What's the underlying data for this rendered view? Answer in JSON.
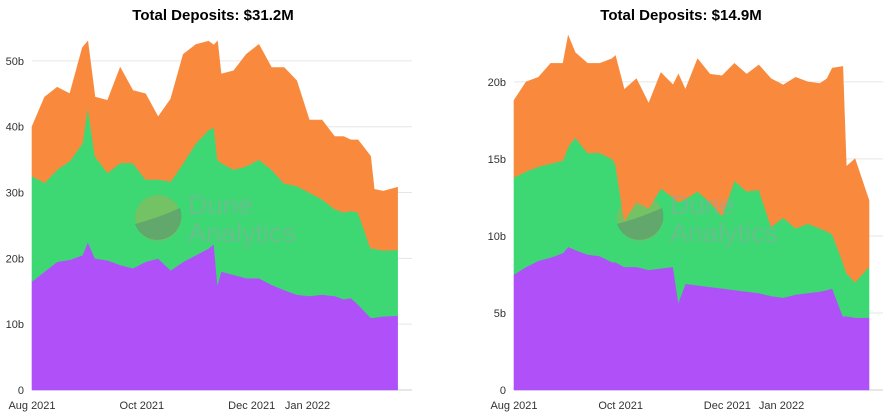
{
  "chart_data": [
    {
      "type": "area",
      "stacked": true,
      "title": "Total Deposits: $31.2M",
      "xlabel": "",
      "ylabel": "",
      "ylim": [
        0,
        55
      ],
      "y_ticks": [
        0,
        10,
        20,
        30,
        40,
        50
      ],
      "y_tick_labels": [
        "0",
        "10b",
        "20b",
        "30b",
        "40b",
        "50b"
      ],
      "x_range": [
        "2021-08-01",
        "2022-02-28"
      ],
      "x_ticks": [
        {
          "date": "2021-08-01",
          "label": "Aug 2021"
        },
        {
          "date": "2021-10-01",
          "label": "Oct 2021"
        },
        {
          "date": "2021-12-01",
          "label": "Dec 2021"
        },
        {
          "date": "2022-01-01",
          "label": "Jan 2022"
        }
      ],
      "watermark": [
        "Dune",
        "Analytics"
      ],
      "x": [
        "2021-08-01",
        "2021-08-08",
        "2021-08-15",
        "2021-08-22",
        "2021-08-29",
        "2021-09-01",
        "2021-09-05",
        "2021-09-12",
        "2021-09-19",
        "2021-09-26",
        "2021-10-03",
        "2021-10-10",
        "2021-10-17",
        "2021-10-24",
        "2021-10-31",
        "2021-11-07",
        "2021-11-10",
        "2021-11-12",
        "2021-11-14",
        "2021-11-21",
        "2021-11-28",
        "2021-12-05",
        "2021-12-12",
        "2021-12-19",
        "2021-12-26",
        "2022-01-02",
        "2022-01-09",
        "2022-01-16",
        "2022-01-21",
        "2022-01-25",
        "2022-01-29",
        "2022-02-05",
        "2022-02-07",
        "2022-02-12",
        "2022-02-20"
      ],
      "series": [
        {
          "name": "Series 1",
          "color": "#b050f8",
          "values": [
            16.5,
            18,
            19.5,
            19.8,
            20.5,
            22.5,
            20,
            19.7,
            19,
            18.5,
            19.5,
            20,
            18.2,
            19.5,
            20.5,
            21.5,
            22.2,
            16,
            18,
            17.5,
            17,
            17,
            16,
            15.2,
            14.5,
            14.3,
            14.5,
            14.3,
            13.8,
            14,
            13,
            11,
            11,
            11.2,
            11.3
          ]
        },
        {
          "name": "Series 2",
          "color": "#3dd874",
          "values": [
            16,
            13.5,
            14,
            15,
            17,
            20.5,
            15.5,
            13.3,
            15.5,
            16,
            12.5,
            12,
            13.5,
            15,
            17,
            18,
            17.7,
            19,
            16.5,
            16,
            17,
            18,
            17.5,
            16.2,
            16.5,
            15.7,
            14.5,
            13.2,
            13.2,
            13.2,
            14,
            10.5,
            10.5,
            10,
            10
          ]
        },
        {
          "name": "Series 3",
          "color": "#f98a3d",
          "values": [
            7.5,
            13,
            12.5,
            10.2,
            14.5,
            10,
            9,
            11,
            14.5,
            11,
            13,
            9.5,
            12.5,
            16.5,
            15,
            13.5,
            12.5,
            18,
            13.5,
            15,
            17,
            17.5,
            15.5,
            17.6,
            16,
            11,
            12,
            11,
            11.5,
            10.8,
            11,
            14,
            9,
            9,
            9.5
          ]
        }
      ]
    },
    {
      "type": "area",
      "stacked": true,
      "title": "Total Deposits: $14.9M",
      "xlabel": "",
      "ylabel": "",
      "ylim": [
        0,
        23.5
      ],
      "y_ticks": [
        0,
        5,
        10,
        15,
        20
      ],
      "y_tick_labels": [
        "0",
        "5b",
        "10b",
        "15b",
        "20b"
      ],
      "x_range": [
        "2021-08-01",
        "2022-02-28"
      ],
      "x_ticks": [
        {
          "date": "2021-08-01",
          "label": "Aug 2021"
        },
        {
          "date": "2021-10-01",
          "label": "Oct 2021"
        },
        {
          "date": "2021-12-01",
          "label": "Dec 2021"
        },
        {
          "date": "2022-01-01",
          "label": "Jan 2022"
        }
      ],
      "watermark": [
        "Dune",
        "Analytics"
      ],
      "x": [
        "2021-08-01",
        "2021-08-08",
        "2021-08-15",
        "2021-08-22",
        "2021-08-29",
        "2021-09-01",
        "2021-09-05",
        "2021-09-12",
        "2021-09-19",
        "2021-09-26",
        "2021-09-28",
        "2021-10-03",
        "2021-10-10",
        "2021-10-17",
        "2021-10-24",
        "2021-10-31",
        "2021-11-03",
        "2021-11-07",
        "2021-11-14",
        "2021-11-21",
        "2021-11-28",
        "2021-12-05",
        "2021-12-12",
        "2021-12-19",
        "2021-12-26",
        "2022-01-02",
        "2022-01-09",
        "2022-01-16",
        "2022-01-23",
        "2022-01-27",
        "2022-01-30",
        "2022-02-05",
        "2022-02-07",
        "2022-02-12",
        "2022-02-20"
      ],
      "series": [
        {
          "name": "Series 1",
          "color": "#b050f8",
          "values": [
            7.5,
            8,
            8.4,
            8.6,
            8.9,
            9.3,
            9.1,
            8.8,
            8.7,
            8.3,
            8.3,
            8,
            8,
            7.8,
            7.9,
            8,
            5.7,
            6.9,
            6.8,
            6.7,
            6.6,
            6.5,
            6.4,
            6.3,
            6.1,
            6,
            6.2,
            6.3,
            6.4,
            6.5,
            6.6,
            4.8,
            4.8,
            4.7,
            4.7
          ]
        },
        {
          "name": "Series 2",
          "color": "#3dd874",
          "values": [
            6.3,
            6.2,
            6.1,
            6.1,
            6,
            6.5,
            7.3,
            6.6,
            6.7,
            6.7,
            6.4,
            3,
            4.2,
            4,
            5.2,
            4.5,
            6.5,
            5.5,
            6.1,
            5.5,
            4.7,
            7.1,
            6.5,
            6.7,
            4.5,
            5.2,
            4.3,
            4.5,
            4.1,
            3.8,
            3.5,
            3.5,
            2.8,
            2.3,
            3.3
          ]
        },
        {
          "name": "Series 3",
          "color": "#f98a3d",
          "values": [
            5,
            5.8,
            5.8,
            6.5,
            6.3,
            7.2,
            5.5,
            5.8,
            5.8,
            6.5,
            7,
            8.5,
            8,
            6.8,
            7.5,
            7.3,
            8.3,
            7.1,
            8.6,
            8.3,
            9.1,
            7.6,
            7.6,
            8.1,
            9.6,
            8.6,
            9.8,
            9.2,
            9.4,
            9.9,
            10.8,
            12.7,
            6.9,
            8,
            4.3
          ]
        }
      ]
    }
  ]
}
